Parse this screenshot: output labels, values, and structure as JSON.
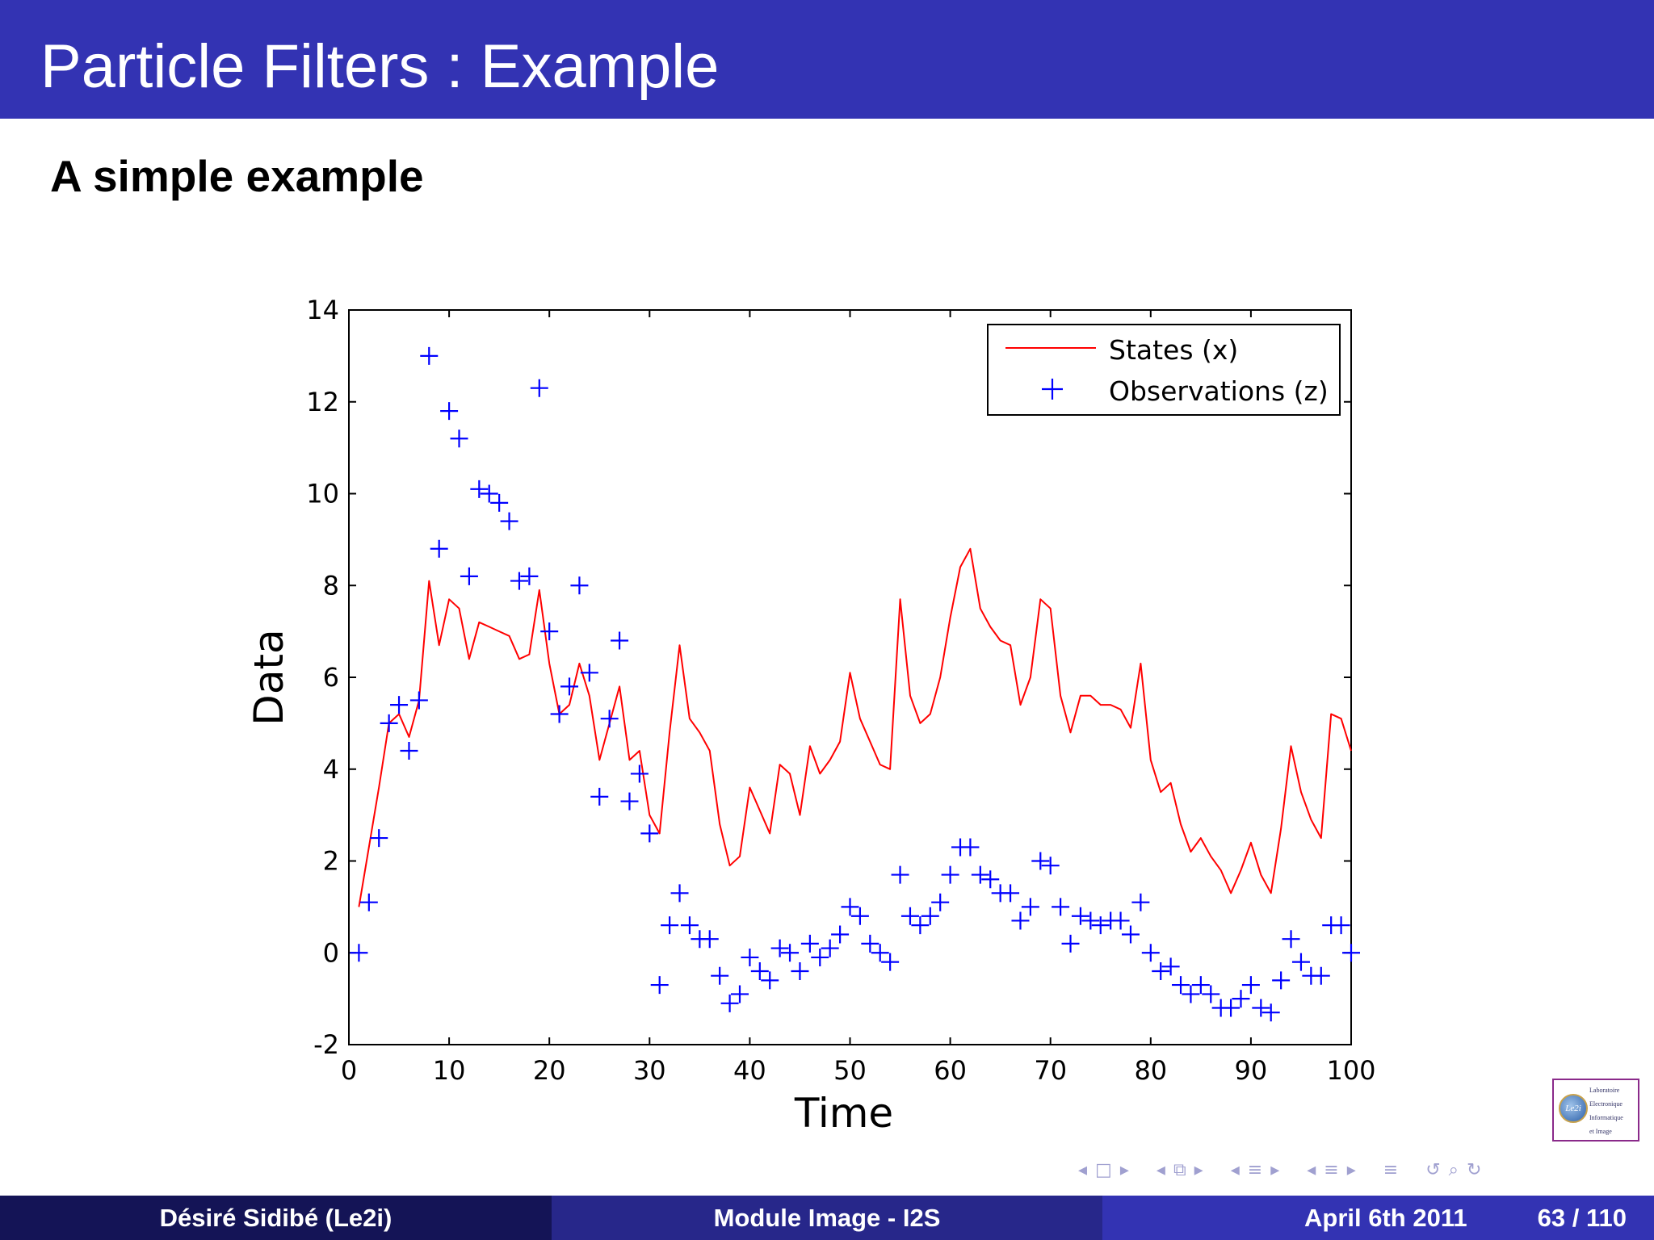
{
  "slide": {
    "title": "Particle Filters : Example",
    "subtitle": "A simple example"
  },
  "footer": {
    "author": "Désiré Sidibé  (Le2i)",
    "course": "Module Image - I2S",
    "date": "April 6th 2011",
    "page": "63 / 110"
  },
  "logo": {
    "badge": "Le2i",
    "lines": [
      "Laboratoire",
      "Electronique",
      "Informatique",
      "et Image"
    ]
  },
  "nav_icons": [
    "nav-prev-icon",
    "nav-frame-icon",
    "nav-next-icon",
    "nav-section-icon",
    "nav-subsection-icon",
    "nav-align-icon",
    "nav-undo-icon",
    "nav-search-icon"
  ],
  "colors": {
    "header": "#3333b3",
    "footer_left": "#141456",
    "footer_mid": "#27278a",
    "footer_right": "#3333b3",
    "states_line": "#ff0000",
    "observations_marker": "#0000ff"
  },
  "chart_data": {
    "type": "line",
    "xlabel": "Time",
    "ylabel": "Data",
    "xlim": [
      0,
      100
    ],
    "ylim": [
      -2,
      14
    ],
    "xticks": [
      "0",
      "10",
      "20",
      "30",
      "40",
      "50",
      "60",
      "70",
      "80",
      "90",
      "100"
    ],
    "yticks": [
      "-2",
      "0",
      "2",
      "4",
      "6",
      "8",
      "10",
      "12",
      "14"
    ],
    "grid": false,
    "legend_position": "top-right",
    "series": [
      {
        "name": "States (x)",
        "style": "line",
        "color": "#ff0000",
        "x": [
          1,
          2,
          3,
          4,
          5,
          6,
          7,
          8,
          9,
          10,
          11,
          12,
          13,
          14,
          15,
          16,
          17,
          18,
          19,
          20,
          21,
          22,
          23,
          24,
          25,
          26,
          27,
          28,
          29,
          30,
          31,
          32,
          33,
          34,
          35,
          36,
          37,
          38,
          39,
          40,
          41,
          42,
          43,
          44,
          45,
          46,
          47,
          48,
          49,
          50,
          51,
          52,
          53,
          54,
          55,
          56,
          57,
          58,
          59,
          60,
          61,
          62,
          63,
          64,
          65,
          66,
          67,
          68,
          69,
          70,
          71,
          72,
          73,
          74,
          75,
          76,
          77,
          78,
          79,
          80,
          81,
          82,
          83,
          84,
          85,
          86,
          87,
          88,
          89,
          90,
          91,
          92,
          93,
          94,
          95,
          96,
          97,
          98,
          99,
          100
        ],
        "y": [
          1.0,
          2.3,
          3.6,
          5.0,
          5.2,
          4.7,
          5.5,
          8.1,
          6.7,
          7.7,
          7.5,
          6.4,
          7.2,
          7.1,
          7.0,
          6.9,
          6.4,
          6.5,
          7.9,
          6.3,
          5.2,
          5.4,
          6.3,
          5.6,
          4.2,
          5.0,
          5.8,
          4.2,
          4.4,
          3.0,
          2.6,
          4.8,
          6.7,
          5.1,
          4.8,
          4.4,
          2.8,
          1.9,
          2.1,
          3.6,
          3.1,
          2.6,
          4.1,
          3.9,
          3.0,
          4.5,
          3.9,
          4.2,
          4.6,
          6.1,
          5.1,
          4.6,
          4.1,
          4.0,
          7.7,
          5.6,
          5.0,
          5.2,
          6.0,
          7.3,
          8.4,
          8.8,
          7.5,
          7.1,
          6.8,
          6.7,
          5.4,
          6.0,
          7.7,
          7.5,
          5.6,
          4.8,
          5.6,
          5.6,
          5.4,
          5.4,
          5.3,
          4.9,
          6.3,
          4.2,
          3.5,
          3.7,
          2.8,
          2.2,
          2.5,
          2.1,
          1.8,
          1.3,
          1.8,
          2.4,
          1.7,
          1.3,
          2.7,
          4.5,
          3.5,
          2.9,
          2.5,
          5.2,
          5.1,
          4.4
        ]
      },
      {
        "name": "Observations (z)",
        "style": "markers",
        "marker": "+",
        "color": "#0000ff",
        "x": [
          1,
          2,
          3,
          4,
          5,
          6,
          7,
          8,
          9,
          10,
          11,
          12,
          13,
          14,
          15,
          16,
          17,
          18,
          19,
          20,
          21,
          22,
          23,
          24,
          25,
          26,
          27,
          28,
          29,
          30,
          31,
          32,
          33,
          34,
          35,
          36,
          37,
          38,
          39,
          40,
          41,
          42,
          43,
          44,
          45,
          46,
          47,
          48,
          49,
          50,
          51,
          52,
          53,
          54,
          55,
          56,
          57,
          58,
          59,
          60,
          61,
          62,
          63,
          64,
          65,
          66,
          67,
          68,
          69,
          70,
          71,
          72,
          73,
          74,
          75,
          76,
          77,
          78,
          79,
          80,
          81,
          82,
          83,
          84,
          85,
          86,
          87,
          88,
          89,
          90,
          91,
          92,
          93,
          94,
          95,
          96,
          97,
          98,
          99,
          100
        ],
        "y": [
          0.0,
          1.1,
          2.5,
          5.0,
          5.4,
          4.4,
          5.5,
          13.0,
          8.8,
          11.8,
          11.2,
          8.2,
          10.1,
          10.0,
          9.8,
          9.4,
          8.1,
          8.2,
          12.3,
          7.0,
          5.2,
          5.8,
          8.0,
          6.1,
          3.4,
          5.1,
          6.8,
          3.3,
          3.9,
          2.6,
          -0.7,
          0.6,
          1.3,
          0.6,
          0.3,
          0.3,
          -0.5,
          -1.1,
          -0.9,
          -0.1,
          -0.4,
          -0.6,
          0.1,
          0.0,
          -0.4,
          0.2,
          -0.1,
          0.1,
          0.4,
          1.0,
          0.8,
          0.2,
          0.0,
          -0.2,
          1.7,
          0.8,
          0.6,
          0.8,
          1.1,
          1.7,
          2.3,
          2.3,
          1.7,
          1.6,
          1.3,
          1.3,
          0.7,
          1.0,
          2.0,
          1.9,
          1.0,
          0.2,
          0.8,
          0.7,
          0.6,
          0.7,
          0.7,
          0.4,
          1.1,
          0.0,
          -0.4,
          -0.3,
          -0.7,
          -0.9,
          -0.7,
          -0.9,
          -1.2,
          -1.2,
          -1.0,
          -0.7,
          -1.2,
          -1.3,
          -0.6,
          0.3,
          -0.2,
          -0.5,
          -0.5,
          0.6,
          0.6,
          0.0
        ]
      }
    ]
  }
}
